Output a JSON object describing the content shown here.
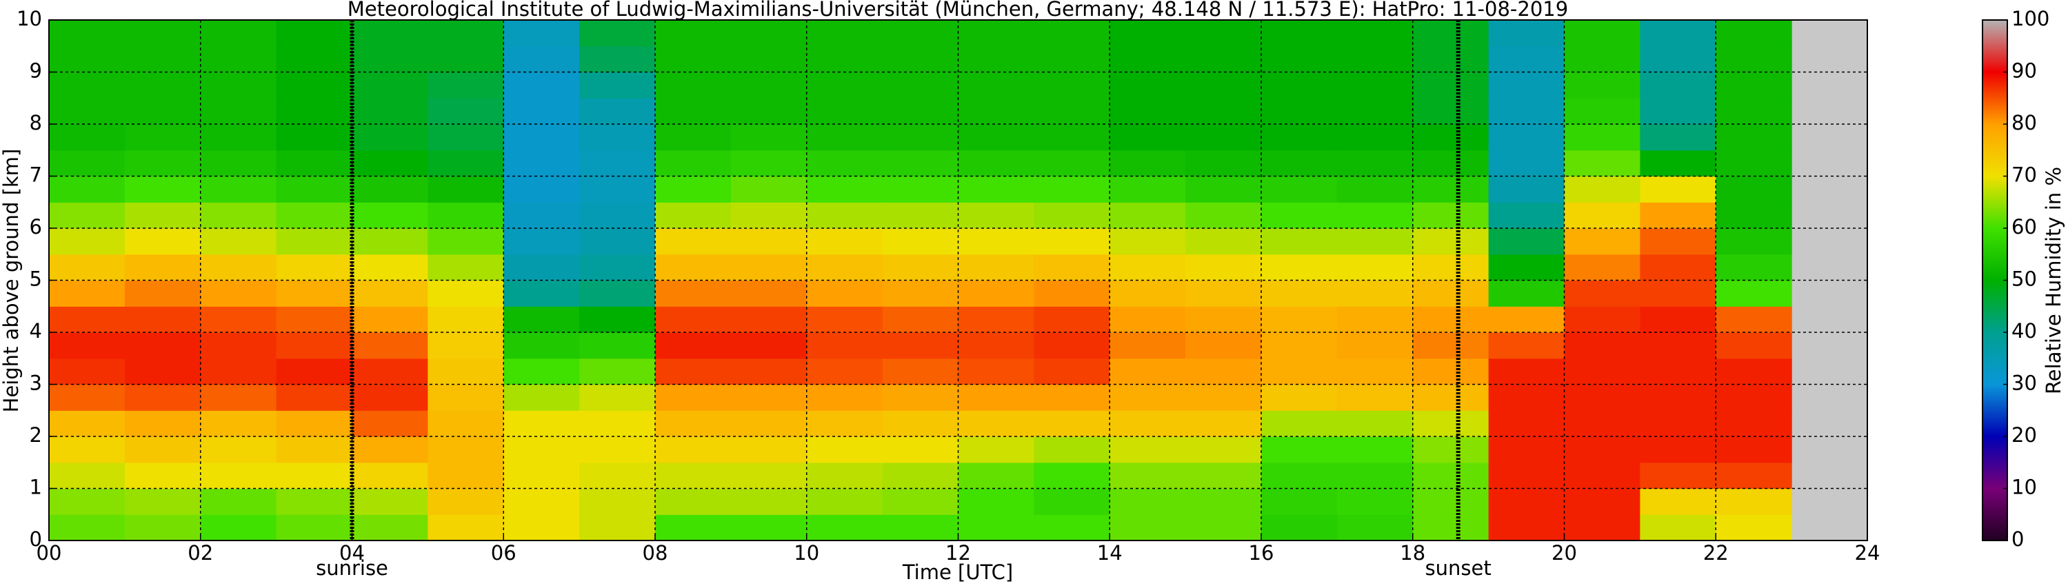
{
  "chart_data": {
    "type": "heatmap",
    "title": "Meteorological Institute of Ludwig-Maximilians-Universität (München, Germany; 48.148 N / 11.573 E):    HatPro: 11-08-2019",
    "xlabel": "Time [UTC]",
    "ylabel": "Height above ground [km]",
    "colorbar_label": "Relative Humidity in %",
    "xlim": [
      0,
      24
    ],
    "ylim": [
      0,
      10
    ],
    "xticks": [
      {
        "value": 0,
        "label": "00"
      },
      {
        "value": 2,
        "label": "02"
      },
      {
        "value": 4,
        "label": "04"
      },
      {
        "value": 6,
        "label": "06"
      },
      {
        "value": 8,
        "label": "08"
      },
      {
        "value": 10,
        "label": "10"
      },
      {
        "value": 12,
        "label": "12"
      },
      {
        "value": 14,
        "label": "14"
      },
      {
        "value": 16,
        "label": "16"
      },
      {
        "value": 18,
        "label": "18"
      },
      {
        "value": 20,
        "label": "20"
      },
      {
        "value": 22,
        "label": "22"
      },
      {
        "value": 24,
        "label": "24"
      }
    ],
    "yticks": [
      0,
      1,
      2,
      3,
      4,
      5,
      6,
      7,
      8,
      9,
      10
    ],
    "grid": true,
    "events": [
      {
        "label": "sunrise",
        "x": 4.0
      },
      {
        "label": "sunset",
        "x": 18.6
      }
    ],
    "x": [
      0,
      1,
      2,
      3,
      4,
      5,
      6,
      7,
      8,
      9,
      10,
      11,
      12,
      13,
      14,
      15,
      16,
      17,
      18,
      19,
      20,
      21,
      22,
      23
    ],
    "y": [
      0,
      0.5,
      1,
      1.5,
      2,
      2.5,
      3,
      3.5,
      4,
      4.5,
      5,
      5.5,
      6,
      6.5,
      7,
      7.5,
      8,
      8.5,
      9,
      9.5,
      10
    ],
    "values": [
      [
        62,
        64,
        68,
        72,
        76,
        84,
        87,
        88,
        86,
        80,
        74,
        68,
        64,
        58,
        54,
        52,
        52,
        52,
        52,
        52
      ],
      [
        63,
        65,
        70,
        74,
        78,
        85,
        88,
        88,
        86,
        82,
        76,
        70,
        66,
        60,
        55,
        53,
        52,
        52,
        52,
        52
      ],
      [
        60,
        62,
        70,
        72,
        76,
        84,
        87,
        87,
        85,
        80,
        74,
        68,
        64,
        58,
        54,
        52,
        52,
        52,
        52,
        52
      ],
      [
        62,
        64,
        70,
        74,
        78,
        86,
        88,
        86,
        84,
        78,
        72,
        66,
        62,
        56,
        52,
        50,
        50,
        50,
        50,
        50
      ],
      [
        63,
        66,
        72,
        78,
        84,
        87,
        87,
        84,
        80,
        75,
        70,
        65,
        60,
        54,
        50,
        48,
        48,
        48,
        48,
        48
      ],
      [
        72,
        74,
        76,
        76,
        76,
        75,
        74,
        73,
        72,
        70,
        66,
        62,
        58,
        52,
        48,
        46,
        45,
        46,
        48,
        48
      ],
      [
        70,
        70,
        70,
        70,
        70,
        66,
        60,
        55,
        52,
        40,
        36,
        34,
        33,
        32,
        32,
        32,
        32,
        32,
        33,
        34
      ],
      [
        68,
        68,
        69,
        70,
        70,
        68,
        62,
        56,
        50,
        42,
        38,
        36,
        35,
        34,
        34,
        35,
        36,
        40,
        44,
        46
      ],
      [
        60,
        66,
        68,
        72,
        76,
        80,
        86,
        88,
        86,
        82,
        76,
        72,
        66,
        60,
        56,
        53,
        52,
        52,
        52,
        52
      ],
      [
        60,
        66,
        68,
        72,
        76,
        80,
        86,
        88,
        86,
        82,
        76,
        72,
        67,
        62,
        57,
        54,
        52,
        52,
        52,
        52
      ],
      [
        60,
        65,
        67,
        70,
        75,
        80,
        85,
        86,
        85,
        80,
        75,
        71,
        66,
        60,
        56,
        53,
        52,
        52,
        52,
        52
      ],
      [
        60,
        64,
        66,
        70,
        74,
        79,
        84,
        86,
        84,
        79,
        74,
        70,
        66,
        60,
        56,
        53,
        52,
        52,
        52,
        52
      ],
      [
        60,
        60,
        62,
        68,
        74,
        80,
        85,
        86,
        85,
        80,
        74,
        70,
        66,
        60,
        55,
        52,
        52,
        52,
        52,
        52
      ],
      [
        60,
        58,
        60,
        66,
        74,
        80,
        86,
        87,
        86,
        81,
        75,
        70,
        65,
        60,
        55,
        52,
        52,
        52,
        52,
        52
      ],
      [
        62,
        62,
        64,
        68,
        74,
        78,
        80,
        82,
        80,
        76,
        72,
        68,
        64,
        58,
        53,
        50,
        50,
        50,
        50,
        50
      ],
      [
        62,
        62,
        64,
        68,
        74,
        78,
        80,
        81,
        79,
        75,
        71,
        67,
        62,
        56,
        52,
        50,
        50,
        50,
        50,
        50
      ],
      [
        56,
        57,
        58,
        60,
        66,
        74,
        78,
        78,
        77,
        74,
        70,
        66,
        60,
        56,
        52,
        50,
        50,
        50,
        50,
        50
      ],
      [
        57,
        58,
        58,
        60,
        66,
        75,
        78,
        79,
        78,
        74,
        70,
        66,
        60,
        55,
        52,
        50,
        50,
        50,
        50,
        50
      ],
      [
        62,
        62,
        62,
        64,
        68,
        76,
        80,
        82,
        80,
        76,
        72,
        68,
        62,
        56,
        52,
        50,
        48,
        48,
        48,
        48
      ],
      [
        88,
        88,
        88,
        88,
        88,
        88,
        88,
        85,
        80,
        55,
        50,
        45,
        40,
        36,
        35,
        35,
        35,
        35,
        35,
        36
      ],
      [
        88,
        88,
        88,
        88,
        88,
        88,
        88,
        88,
        87,
        86,
        82,
        78,
        72,
        68,
        62,
        58,
        56,
        55,
        54,
        54
      ],
      [
        68,
        72,
        86,
        88,
        88,
        88,
        88,
        88,
        88,
        86,
        86,
        84,
        80,
        70,
        50,
        42,
        40,
        40,
        38,
        38
      ],
      [
        70,
        72,
        86,
        88,
        88,
        88,
        88,
        86,
        84,
        60,
        56,
        54,
        52,
        52,
        52,
        52,
        52,
        52,
        52,
        52
      ]
    ],
    "colorbar_ticks": [
      0,
      10,
      20,
      30,
      40,
      50,
      60,
      70,
      80,
      90,
      100
    ],
    "colors": [
      "#200020",
      "#780078",
      "#0000b4",
      "#0a96d8",
      "#00a090",
      "#00b000",
      "#40e000",
      "#f0e000",
      "#ffa000",
      "#f00000",
      "#b4b4b4"
    ],
    "missing_color": "#c8c8c8"
  }
}
